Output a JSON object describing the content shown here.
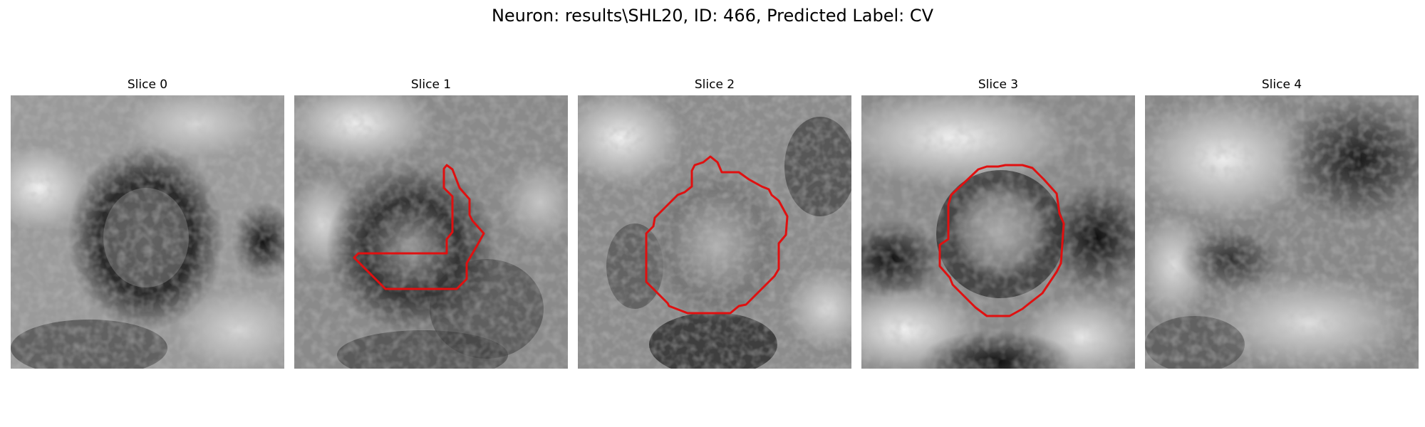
{
  "figure": {
    "title": "Neuron: results\\SHL20, ID: 466, Predicted Label: CV"
  },
  "panels": [
    {
      "title": "Slice 0",
      "has_contour": false,
      "colormap": "gray"
    },
    {
      "title": "Slice 1",
      "has_contour": true,
      "contour_color": "#e01010",
      "colormap": "gray"
    },
    {
      "title": "Slice 2",
      "has_contour": true,
      "contour_color": "#e01010",
      "colormap": "gray"
    },
    {
      "title": "Slice 3",
      "has_contour": true,
      "contour_color": "#e01010",
      "colormap": "gray"
    },
    {
      "title": "Slice 4",
      "has_contour": false,
      "colormap": "gray"
    }
  ]
}
